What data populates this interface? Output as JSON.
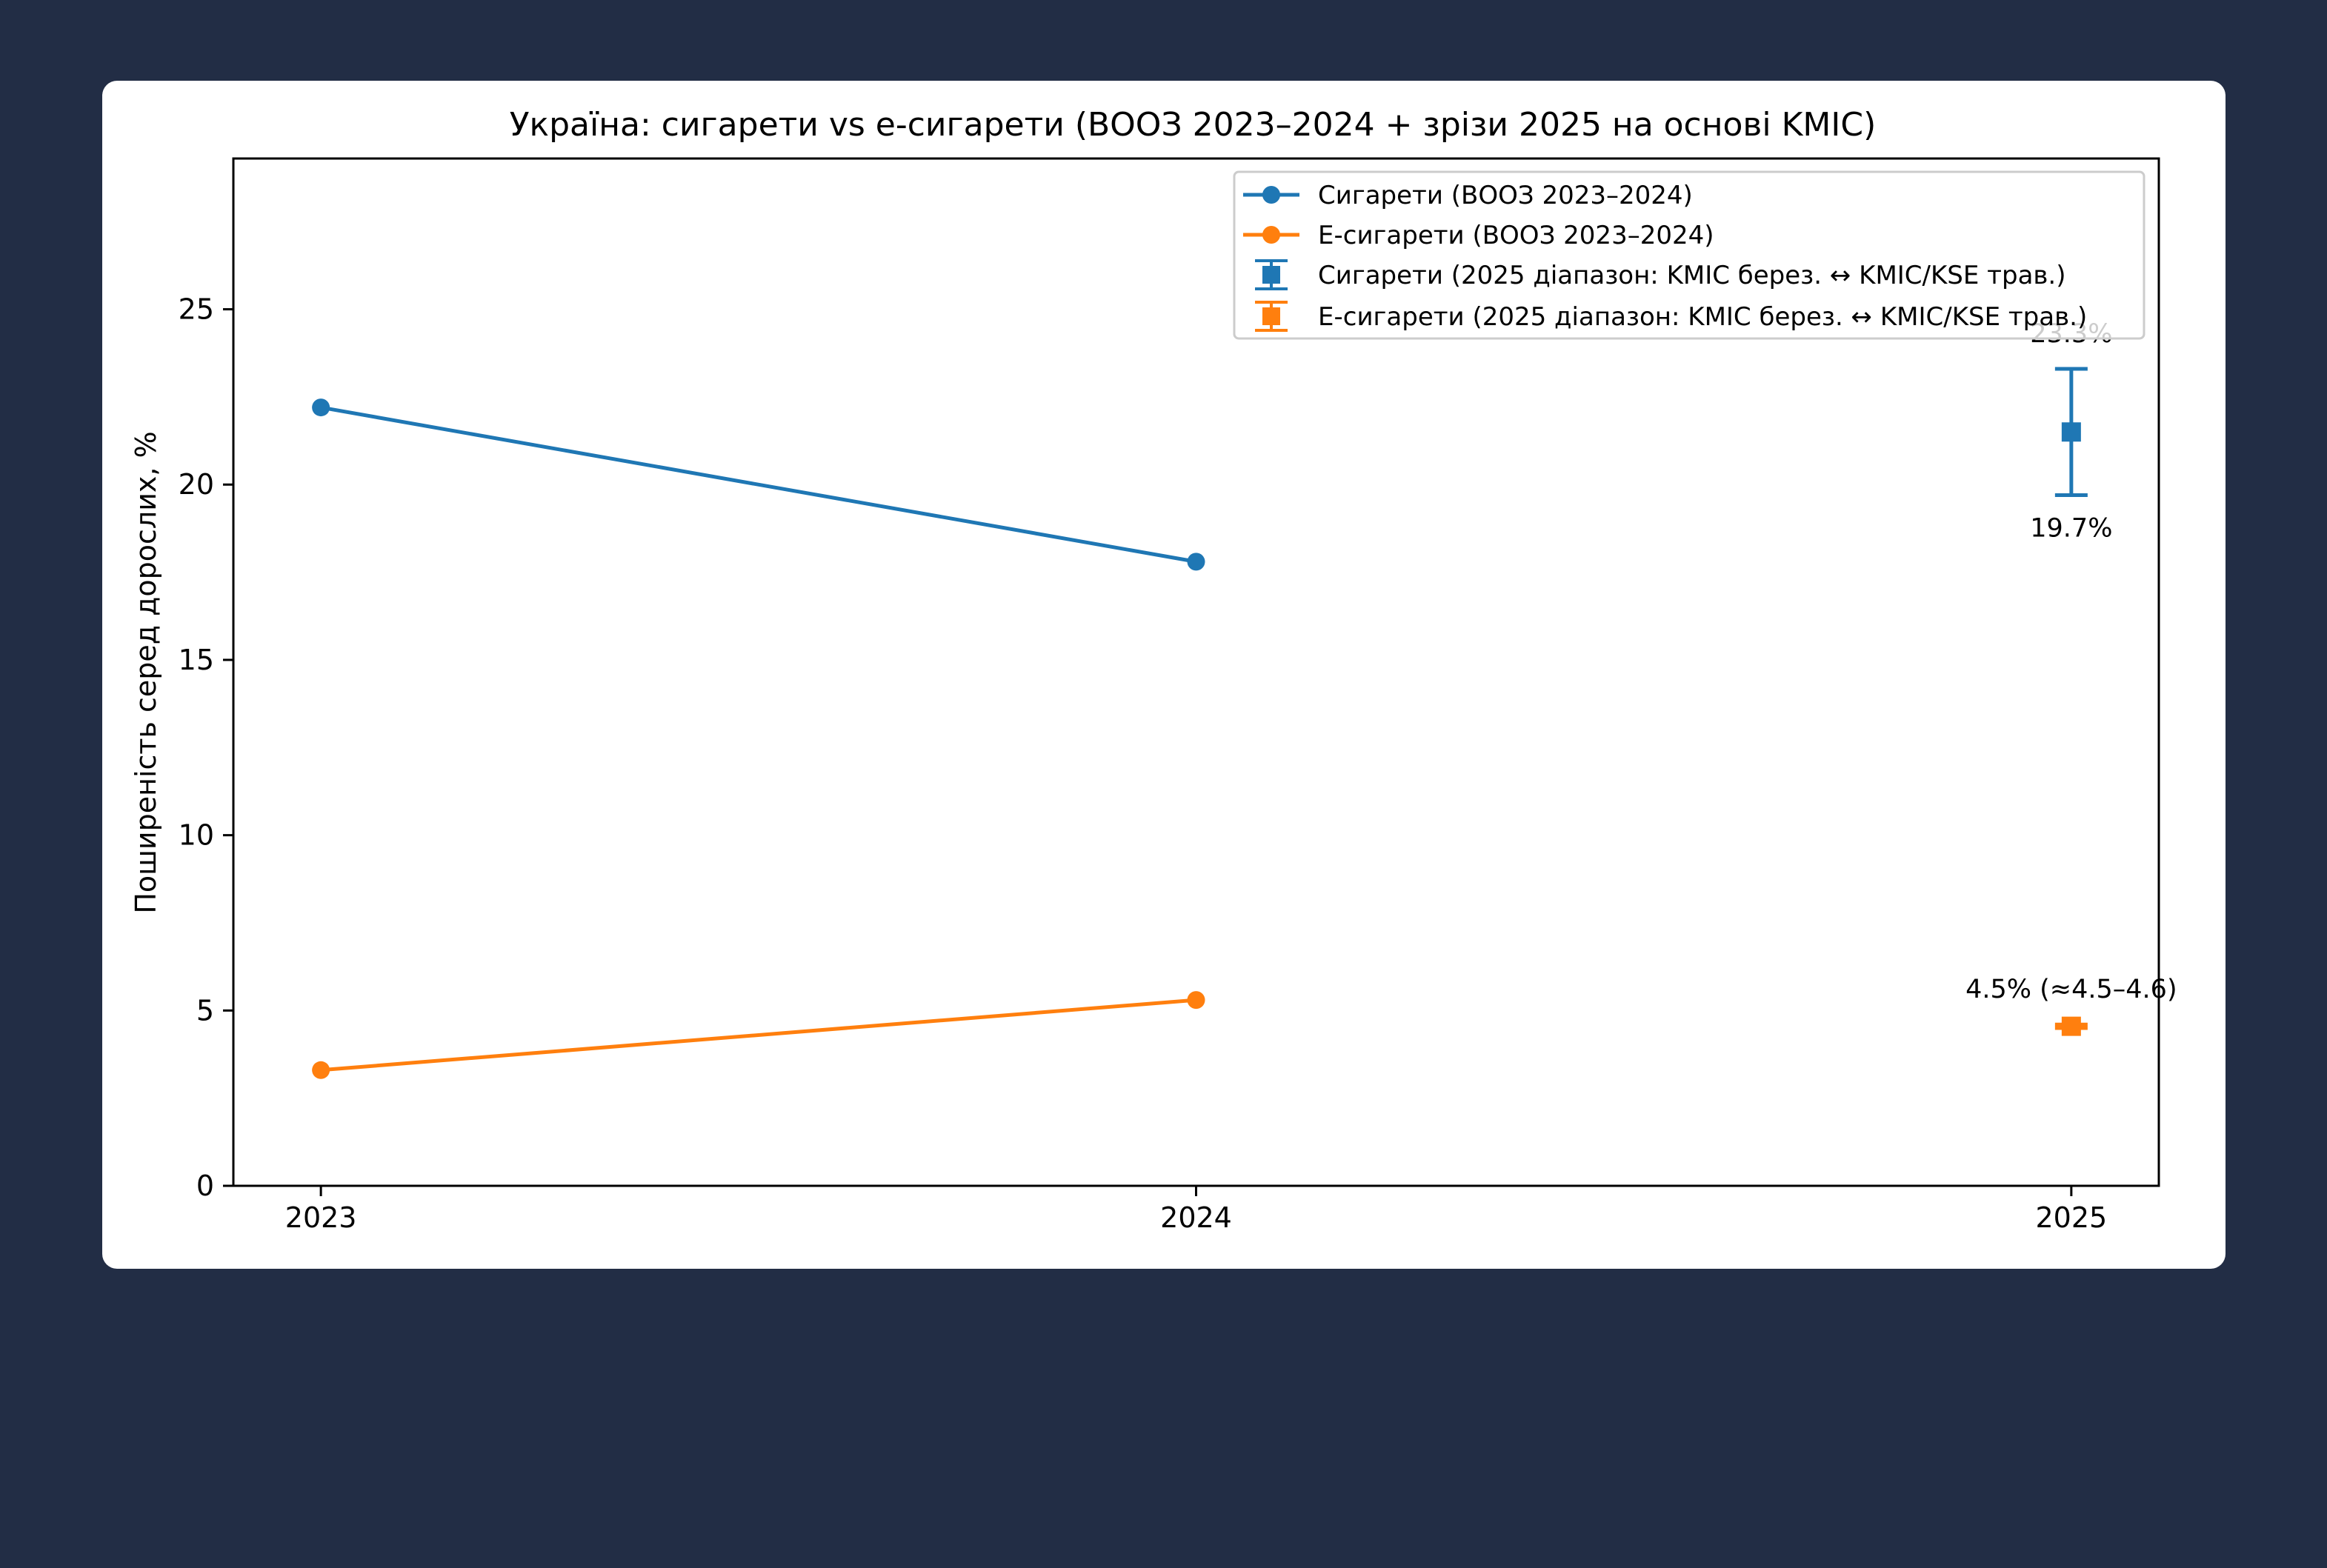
{
  "chart_data": {
    "type": "line",
    "title": "Україна: сигарети vs е-сигарети (ВООЗ 2023–2024 + зрізи 2025 на основі KMIC)",
    "xlabel": "",
    "ylabel": "Поширеність серед дорослих, %",
    "xlim": [
      2022.9,
      2025.1
    ],
    "ylim": [
      0,
      29.3
    ],
    "x_ticks": [
      "2023",
      "2024",
      "2025"
    ],
    "y_ticks": [
      "0",
      "5",
      "10",
      "15",
      "20",
      "25"
    ],
    "grid": false,
    "legend_position": "top-right",
    "series": [
      {
        "name": "Сигарети (ВООЗ 2023–2024)",
        "color": "#1f77b4",
        "marker": "circle",
        "x": [
          2023,
          2024
        ],
        "y": [
          22.2,
          17.8
        ]
      },
      {
        "name": "Е-сигарети (ВООЗ 2023–2024)",
        "color": "#ff7f0e",
        "marker": "circle",
        "x": [
          2023,
          2024
        ],
        "y": [
          3.3,
          5.3
        ]
      }
    ],
    "range_points": [
      {
        "name": "Сигарети (2025 діапазон: KMIC берез. ↔ KMIC/KSE трав.)",
        "color": "#1f77b4",
        "marker": "square",
        "x": 2025,
        "y": 21.5,
        "low": 19.7,
        "high": 23.3,
        "labels": [
          {
            "text": "23.3%",
            "at": "high",
            "pos": "above"
          },
          {
            "text": "19.7%",
            "at": "low",
            "pos": "below"
          }
        ]
      },
      {
        "name": "Е-сигарети (2025 діапазон: KMIC берез. ↔ KMIC/KSE трав.)",
        "color": "#ff7f0e",
        "marker": "square",
        "x": 2025,
        "y": 4.55,
        "low": 4.5,
        "high": 4.6,
        "labels": [
          {
            "text": "4.5% (≈4.5–4.6)",
            "at": "high",
            "pos": "above"
          }
        ]
      }
    ]
  }
}
